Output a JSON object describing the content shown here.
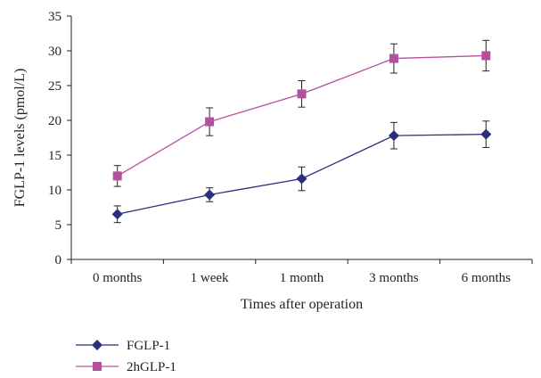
{
  "chart_data": {
    "type": "line",
    "title": "",
    "xlabel": "Times after operation",
    "ylabel": "FGLP-1 levels (pmol/L)",
    "categories": [
      "0 months",
      "1 week",
      "1 month",
      "3 months",
      "6 months"
    ],
    "ylim": [
      0,
      35
    ],
    "yticks": [
      0,
      5,
      10,
      15,
      20,
      25,
      30,
      35
    ],
    "grid": false,
    "legend_position": "bottom-left",
    "series": [
      {
        "name": "FGLP-1",
        "marker": "diamond",
        "color": "#2b2f7a",
        "values": [
          6.5,
          9.3,
          11.6,
          17.8,
          18.0
        ],
        "error": [
          1.2,
          1.0,
          1.7,
          1.9,
          1.9
        ]
      },
      {
        "name": "2hGLP-1",
        "marker": "square",
        "color": "#b4509e",
        "values": [
          12.0,
          19.8,
          23.8,
          28.9,
          29.3
        ],
        "error": [
          1.5,
          2.0,
          1.9,
          2.1,
          2.2
        ]
      }
    ]
  }
}
